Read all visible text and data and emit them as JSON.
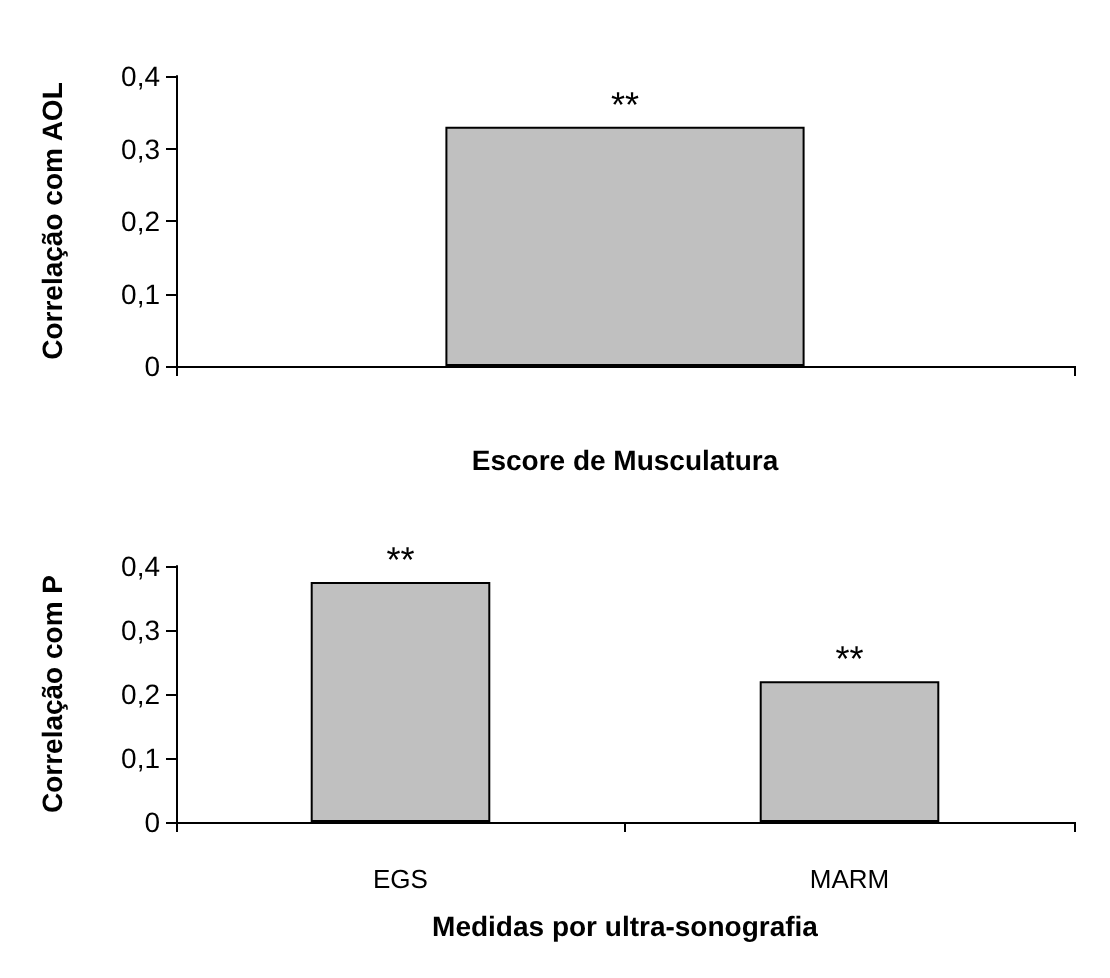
{
  "chart_data": [
    {
      "type": "bar",
      "categories": [
        null
      ],
      "values": [
        0.33
      ],
      "value_labels": [
        "**"
      ],
      "color": "#c0c0c0",
      "xlabel": "Escore de Musculatura",
      "ylabel": "Correlação com AOL",
      "ylim": [
        0,
        0.4
      ],
      "yticks": [
        {
          "value": 0,
          "label": "0"
        },
        {
          "value": 0.1,
          "label": "0,1"
        },
        {
          "value": 0.2,
          "label": "0,2"
        },
        {
          "value": 0.3,
          "label": "0,3"
        },
        {
          "value": 0.4,
          "label": "0,4"
        }
      ],
      "grid": false
    },
    {
      "type": "bar",
      "categories": [
        "EGS",
        "MARM"
      ],
      "values": [
        0.375,
        0.22
      ],
      "value_labels": [
        "**",
        "**"
      ],
      "color": "#c0c0c0",
      "xlabel": "Medidas por ultra-sonografia",
      "ylabel": "Correlação com P",
      "ylim": [
        0,
        0.4
      ],
      "yticks": [
        {
          "value": 0,
          "label": "0"
        },
        {
          "value": 0.1,
          "label": "0,1"
        },
        {
          "value": 0.2,
          "label": "0,2"
        },
        {
          "value": 0.3,
          "label": "0,3"
        },
        {
          "value": 0.4,
          "label": "0,4"
        }
      ],
      "grid": false
    }
  ]
}
